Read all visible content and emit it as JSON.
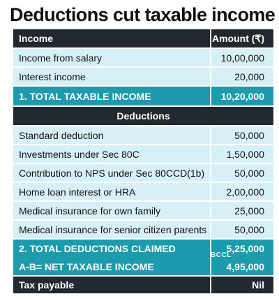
{
  "title": "Deductions cut taxable income",
  "header": {
    "income": "Income",
    "amount": "Amount (₹)"
  },
  "rows_income": [
    {
      "label": "Income from salary",
      "amount": "10,00,000"
    },
    {
      "label": "Interest income",
      "amount": "20,000"
    }
  ],
  "total_taxable": {
    "label": "1. TOTAL TAXABLE INCOME",
    "amount": "10,20,000"
  },
  "deductions_header": "Deductions",
  "rows_deductions": [
    {
      "label": "Standard deduction",
      "amount": "50,000"
    },
    {
      "label": "Investments under Sec 80C",
      "amount": "1,50,000"
    },
    {
      "label": "Contribution to NPS under Sec 80CCD(1b)",
      "amount": "50,000"
    },
    {
      "label": "Home loan interest or HRA",
      "amount": "2,00,000"
    },
    {
      "label": "Medical insurance for own family",
      "amount": "25,000"
    },
    {
      "label": "Medical insurance for senior citizen parents",
      "amount": "50,000"
    }
  ],
  "total_deductions": {
    "label": "2. TOTAL DEDUCTIONS CLAIMED",
    "amount": "5,25,000"
  },
  "net_taxable": {
    "label": "A-B= NET TAXABLE INCOME",
    "amount": "4,95,000"
  },
  "tax_payable": {
    "label": "Tax payable",
    "amount": "Nil"
  },
  "watermark": "BCCL",
  "colors": {
    "dark": "#232a2f",
    "light": "#d7eff6",
    "teal": "#1b9bab"
  }
}
